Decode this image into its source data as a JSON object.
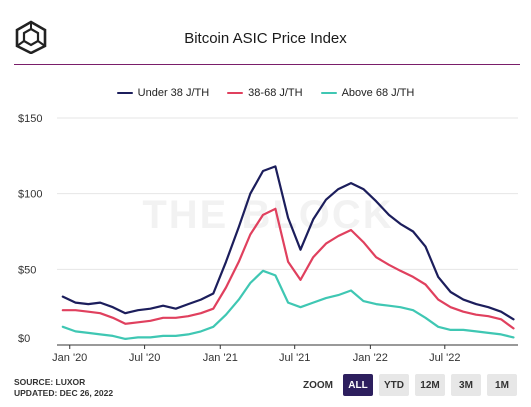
{
  "header": {
    "title": "Bitcoin ASIC Price Index"
  },
  "watermark": "THE BLOCK",
  "footer": {
    "source": "SOURCE: LUXOR",
    "updated": "UPDATED: DEC 26, 2022"
  },
  "zoom": {
    "label": "ZOOM",
    "buttons": [
      "ALL",
      "YTD",
      "12M",
      "3M",
      "1M"
    ],
    "active": "ALL"
  },
  "colors": {
    "accent_rule": "#7a1e6a",
    "active_button": "#2d1f5e"
  },
  "chart_data": {
    "type": "line",
    "title": "Bitcoin ASIC Price Index",
    "xlabel": "",
    "ylabel": "",
    "x_ticks": [
      "Jan '20",
      "Jul '20",
      "Jan '21",
      "Jul '21",
      "Jan '22",
      "Jul '22"
    ],
    "x_range": [
      "2019-12-01",
      "2022-12-26"
    ],
    "y_ticks": [
      "$0",
      "$50",
      "$100",
      "$150"
    ],
    "ylim": [
      0,
      150
    ],
    "grid": "horizontal",
    "legend_position": "top",
    "x": [
      "2019-12-15",
      "2020-01-15",
      "2020-02-15",
      "2020-03-15",
      "2020-04-15",
      "2020-05-15",
      "2020-06-15",
      "2020-07-15",
      "2020-08-15",
      "2020-09-15",
      "2020-10-15",
      "2020-11-15",
      "2020-12-15",
      "2021-01-15",
      "2021-02-15",
      "2021-03-15",
      "2021-04-15",
      "2021-05-15",
      "2021-06-15",
      "2021-07-15",
      "2021-08-15",
      "2021-09-15",
      "2021-10-15",
      "2021-11-15",
      "2021-12-15",
      "2022-01-15",
      "2022-02-15",
      "2022-03-15",
      "2022-04-15",
      "2022-05-15",
      "2022-06-15",
      "2022-07-15",
      "2022-08-15",
      "2022-09-15",
      "2022-10-15",
      "2022-11-15",
      "2022-12-15"
    ],
    "series": [
      {
        "name": "Under 38 J/TH",
        "color": "#1c1e5c",
        "values": [
          32,
          28,
          27,
          28,
          25,
          21,
          23,
          24,
          26,
          24,
          27,
          30,
          34,
          55,
          78,
          100,
          115,
          118,
          84,
          63,
          83,
          96,
          103,
          107,
          103,
          95,
          86,
          80,
          75,
          65,
          45,
          35,
          30,
          27,
          25,
          22,
          17
        ]
      },
      {
        "name": "38-68 J/TH",
        "color": "#e0405e",
        "values": [
          23,
          23,
          22,
          21,
          18,
          14,
          15,
          16,
          18,
          18,
          19,
          21,
          24,
          38,
          55,
          73,
          86,
          90,
          55,
          43,
          58,
          67,
          72,
          76,
          68,
          58,
          53,
          49,
          45,
          40,
          30,
          25,
          22,
          20,
          19,
          17,
          11
        ]
      },
      {
        "name": "Above 68 J/TH",
        "color": "#3fc7b3",
        "values": [
          12,
          9,
          8,
          7,
          6,
          4,
          5,
          5,
          6,
          6,
          7,
          9,
          12,
          20,
          30,
          41,
          49,
          46,
          28,
          25,
          28,
          31,
          33,
          36,
          29,
          27,
          26,
          25,
          23,
          18,
          12,
          10,
          10,
          9,
          8,
          7,
          5
        ]
      }
    ]
  }
}
